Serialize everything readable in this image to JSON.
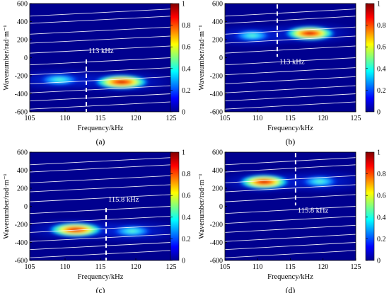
{
  "chart_data": [
    {
      "type": "heatmap",
      "panel_label": "(a)",
      "xlabel": "Frequency/kHz",
      "ylabel": "Wavenumber/rad·m⁻¹",
      "xlim": [
        105,
        125
      ],
      "ylim": [
        -600,
        600
      ],
      "x_ticks": [
        "105",
        "110",
        "115",
        "120",
        "125"
      ],
      "y_ticks": [
        "600",
        "400",
        "200",
        "0",
        "-200",
        "-400",
        "-600"
      ],
      "colorbar": {
        "range": [
          0,
          1
        ],
        "ticks": [
          "1",
          "0.8",
          "0.6",
          "0.4",
          "0.2",
          "0"
        ]
      },
      "marker": {
        "frequency": 113,
        "label": "113 kHz"
      },
      "lobes": [
        {
          "frequency": 118,
          "wavenumber": -270,
          "intensity": 1.0
        },
        {
          "frequency": 109.2,
          "wavenumber": -245,
          "intensity": 0.3
        }
      ]
    },
    {
      "type": "heatmap",
      "panel_label": "(b)",
      "xlabel": "Frequency/kHz",
      "ylabel": "Wavenumber/rad·m⁻¹",
      "xlim": [
        105,
        125
      ],
      "ylim": [
        -600,
        600
      ],
      "x_ticks": [
        "105",
        "110",
        "115",
        "120",
        "125"
      ],
      "y_ticks": [
        "600",
        "400",
        "200",
        "0",
        "-200",
        "-400",
        "-600"
      ],
      "colorbar": {
        "range": [
          0,
          1
        ],
        "ticks": [
          "1",
          "0.8",
          "0.6",
          "0.4",
          "0.2",
          "0"
        ]
      },
      "marker": {
        "frequency": 113,
        "label": "113 kHz"
      },
      "lobes": [
        {
          "frequency": 118,
          "wavenumber": 270,
          "intensity": 1.0
        },
        {
          "frequency": 109.2,
          "wavenumber": 245,
          "intensity": 0.3
        }
      ]
    },
    {
      "type": "heatmap",
      "panel_label": "(c)",
      "xlabel": "Frequency/kHz",
      "ylabel": "Wavenumber/rad·m⁻¹",
      "xlim": [
        105,
        125
      ],
      "ylim": [
        -600,
        600
      ],
      "x_ticks": [
        "105",
        "110",
        "115",
        "120",
        "125"
      ],
      "y_ticks": [
        "600",
        "400",
        "200",
        "0",
        "-200",
        "-400",
        "-600"
      ],
      "colorbar": {
        "range": [
          0,
          1
        ],
        "ticks": [
          "1",
          "0.8",
          "0.6",
          "0.4",
          "0.2",
          "0"
        ]
      },
      "marker": {
        "frequency": 115.8,
        "label": "115.8 kHz"
      },
      "lobes": [
        {
          "frequency": 111.5,
          "wavenumber": -260,
          "intensity": 1.0
        },
        {
          "frequency": 119.5,
          "wavenumber": -275,
          "intensity": 0.35
        }
      ]
    },
    {
      "type": "heatmap",
      "panel_label": "(d)",
      "xlabel": "Frequency/kHz",
      "ylabel": "Wavenumber/rad·m⁻¹",
      "xlim": [
        105,
        125
      ],
      "ylim": [
        -600,
        600
      ],
      "x_ticks": [
        "105",
        "110",
        "115",
        "120",
        "125"
      ],
      "y_ticks": [
        "600",
        "400",
        "200",
        "0",
        "-200",
        "-400",
        "-600"
      ],
      "colorbar": {
        "range": [
          0,
          1
        ],
        "ticks": [
          "1",
          "0.8",
          "0.6",
          "0.4",
          "0.2",
          "0"
        ]
      },
      "marker": {
        "frequency": 115.8,
        "label": "115.8 kHz"
      },
      "lobes": [
        {
          "frequency": 111,
          "wavenumber": 270,
          "intensity": 1.0
        },
        {
          "frequency": 119.5,
          "wavenumber": 275,
          "intensity": 0.38
        }
      ]
    }
  ],
  "colors": {
    "background": "#00008f",
    "colormap": [
      "#00008f",
      "#0000ff",
      "#0080ff",
      "#00ffff",
      "#80ff80",
      "#ffff00",
      "#ff8000",
      "#ff0000",
      "#800000"
    ],
    "dispersion_lines": "#ffffff",
    "marker": "#ffffff"
  }
}
